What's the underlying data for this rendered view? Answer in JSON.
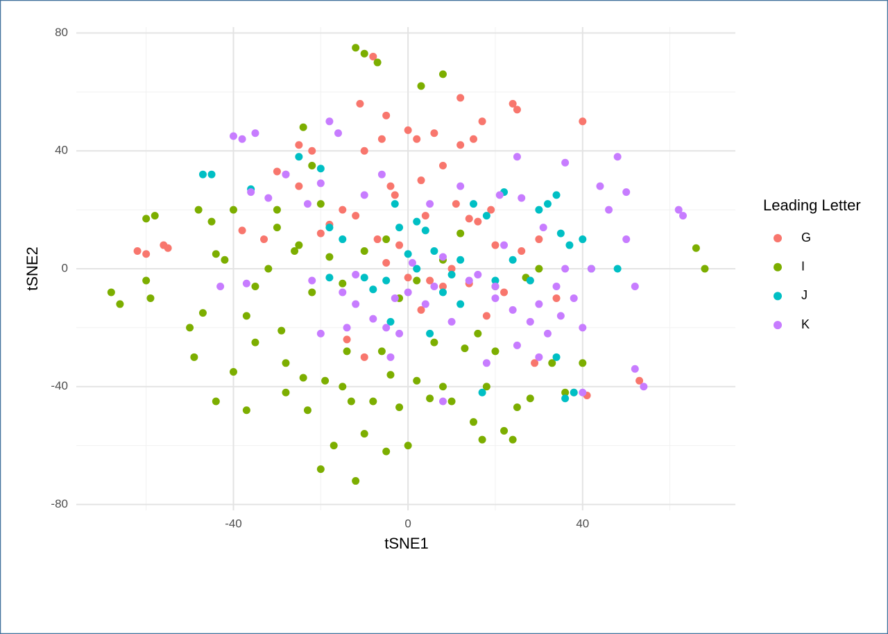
{
  "chart_data": {
    "type": "scatter",
    "x_label": "tSNE1",
    "y_label": "tSNE2",
    "legend_title": "Leading Letter",
    "legend_position": "right",
    "grid": true,
    "xlim": [
      -76,
      75
    ],
    "ylim": [
      -82,
      82
    ],
    "xticks": [
      -40,
      0,
      40
    ],
    "yticks": [
      -80,
      -40,
      0,
      40,
      80
    ],
    "series": [
      {
        "name": "G",
        "color": "#F8766D",
        "x": [
          -62,
          -60,
          -56,
          -55,
          -38,
          -30,
          -28,
          -25,
          -22,
          -20,
          -18,
          -15,
          -12,
          -10,
          -11,
          -8,
          -6,
          -5,
          -3,
          -7,
          -4,
          -2,
          0,
          2,
          3,
          4,
          6,
          8,
          10,
          12,
          12,
          14,
          15,
          17,
          19,
          20,
          22,
          24,
          25,
          26,
          28,
          30,
          34,
          40,
          38,
          41,
          53,
          -14,
          -10,
          5,
          8,
          14,
          18,
          -5,
          0,
          3,
          -25,
          -33,
          11,
          16,
          29
        ],
        "y": [
          6,
          5,
          8,
          7,
          13,
          33,
          32,
          42,
          40,
          12,
          15,
          20,
          18,
          40,
          56,
          72,
          44,
          52,
          25,
          10,
          28,
          8,
          47,
          44,
          30,
          18,
          46,
          35,
          0,
          42,
          58,
          17,
          44,
          50,
          20,
          8,
          -8,
          56,
          54,
          6,
          -4,
          10,
          -10,
          50,
          -42,
          -43,
          -38,
          -24,
          -30,
          -4,
          -6,
          -5,
          -16,
          2,
          -3,
          -14,
          28,
          10,
          22,
          16,
          -32
        ]
      },
      {
        "name": "I",
        "color": "#7CAE00",
        "x": [
          -68,
          -66,
          -60,
          -58,
          -60,
          -59,
          -50,
          -49,
          -47,
          -48,
          -45,
          -44,
          -42,
          -40,
          -44,
          -40,
          -37,
          -37,
          -35,
          -32,
          -30,
          -29,
          -28,
          -28,
          -26,
          -24,
          -24,
          -23,
          -22,
          -20,
          -19,
          -17,
          -15,
          -14,
          -13,
          -12,
          -12,
          -10,
          -10,
          -8,
          -7,
          -6,
          -5,
          -4,
          0,
          -2,
          2,
          3,
          5,
          6,
          8,
          8,
          10,
          13,
          15,
          17,
          18,
          20,
          22,
          24,
          25,
          28,
          30,
          33,
          36,
          40,
          66,
          68,
          -5,
          -10,
          -18,
          -15,
          -25,
          12,
          8,
          -2,
          2,
          16,
          20,
          27,
          -22,
          -20,
          -30,
          -35
        ],
        "y": [
          -8,
          -12,
          17,
          18,
          -4,
          -10,
          -20,
          -30,
          -15,
          20,
          16,
          5,
          3,
          20,
          -45,
          -35,
          -48,
          -16,
          -6,
          0,
          14,
          -21,
          -32,
          -42,
          6,
          -37,
          48,
          -48,
          -8,
          -68,
          -38,
          -60,
          -40,
          -28,
          -45,
          -72,
          75,
          73,
          -56,
          -45,
          70,
          -28,
          -62,
          -36,
          -60,
          -47,
          -38,
          62,
          -44,
          -25,
          66,
          -40,
          -45,
          -27,
          -52,
          -58,
          -40,
          -28,
          -55,
          -58,
          -47,
          -44,
          0,
          -32,
          -42,
          -32,
          7,
          0,
          10,
          6,
          4,
          -5,
          8,
          12,
          3,
          -10,
          -4,
          -22,
          -6,
          -3,
          35,
          22,
          20,
          -25
        ]
      },
      {
        "name": "J",
        "color": "#00BFC4",
        "x": [
          -47,
          -45,
          -36,
          -25,
          -20,
          -18,
          -15,
          -10,
          -5,
          -3,
          -2,
          2,
          4,
          6,
          8,
          10,
          12,
          15,
          18,
          20,
          22,
          24,
          28,
          30,
          32,
          34,
          35,
          37,
          40,
          42,
          48,
          34,
          38,
          36,
          2,
          -8,
          -18,
          5,
          0,
          17,
          -4,
          12
        ],
        "y": [
          32,
          32,
          27,
          38,
          34,
          14,
          10,
          -3,
          -4,
          22,
          14,
          16,
          13,
          6,
          -8,
          -2,
          -12,
          22,
          18,
          -4,
          26,
          3,
          -4,
          20,
          22,
          25,
          12,
          8,
          10,
          0,
          0,
          -30,
          -42,
          -44,
          0,
          -7,
          -3,
          -22,
          5,
          -42,
          -18,
          3
        ]
      },
      {
        "name": "K",
        "color": "#C77CFF",
        "x": [
          -40,
          -38,
          -35,
          -36,
          -32,
          -28,
          -23,
          -20,
          -18,
          -16,
          -15,
          -14,
          -12,
          -10,
          -8,
          -5,
          -6,
          -3,
          -2,
          0,
          1,
          4,
          5,
          6,
          8,
          10,
          12,
          14,
          16,
          18,
          20,
          21,
          22,
          24,
          25,
          26,
          28,
          30,
          31,
          32,
          34,
          35,
          36,
          38,
          40,
          40,
          42,
          44,
          46,
          48,
          50,
          52,
          52,
          50,
          54,
          62,
          63,
          -43,
          -37,
          -22,
          -12,
          -20,
          8,
          20,
          36,
          25,
          30,
          -4
        ],
        "y": [
          45,
          44,
          46,
          26,
          24,
          32,
          22,
          29,
          50,
          46,
          -8,
          -20,
          -12,
          25,
          -17,
          -20,
          32,
          -10,
          -22,
          -8,
          2,
          -12,
          22,
          -6,
          4,
          -18,
          28,
          -4,
          -2,
          -32,
          -6,
          25,
          8,
          -14,
          38,
          24,
          -18,
          -12,
          14,
          -22,
          -6,
          -16,
          36,
          -10,
          -20,
          -42,
          0,
          28,
          20,
          38,
          10,
          -6,
          -34,
          26,
          -40,
          20,
          18,
          -6,
          -5,
          -4,
          -2,
          -22,
          -45,
          -10,
          0,
          -26,
          -30,
          -30
        ]
      }
    ]
  }
}
